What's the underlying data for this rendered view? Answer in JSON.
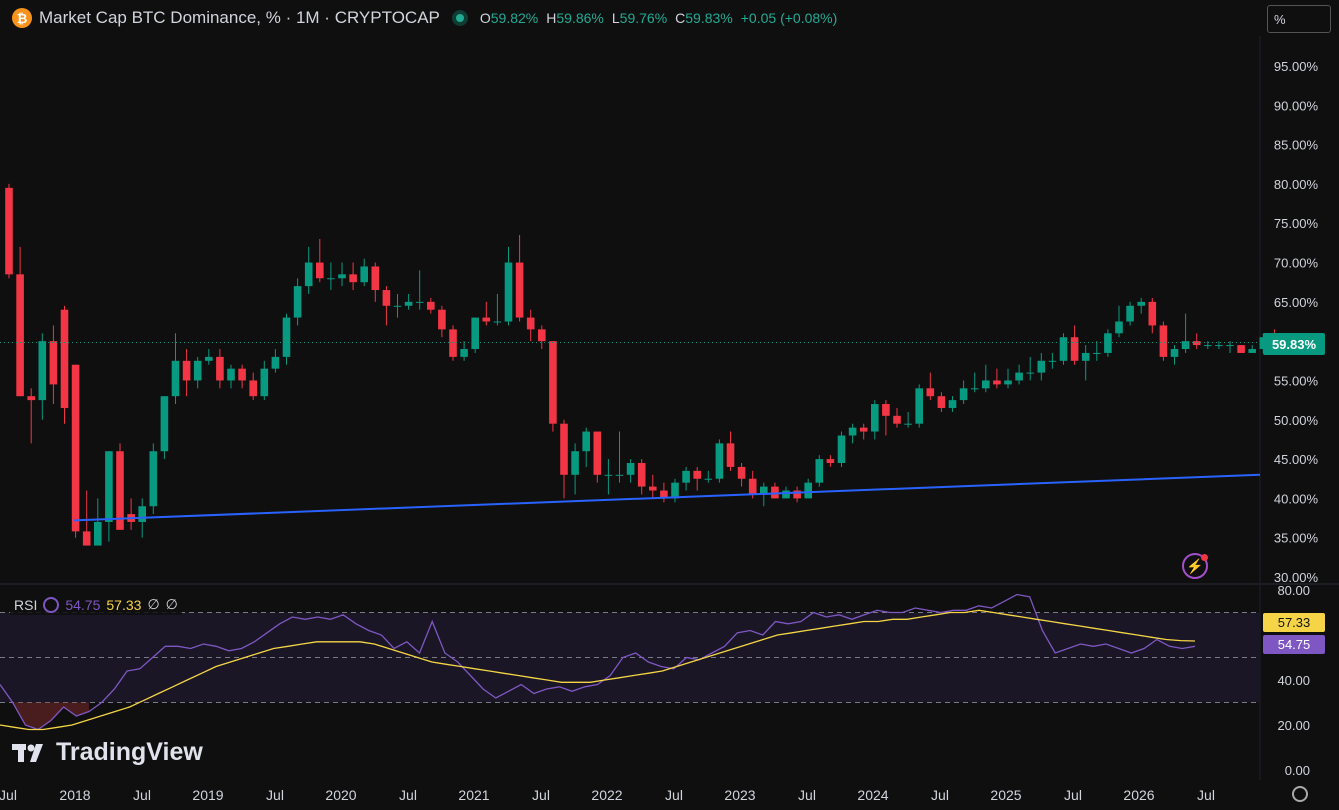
{
  "header": {
    "symbol_icon": "₿",
    "title": "Market Cap BTC Dominance, % · 1M · CRYPTOCAP",
    "ohlc": [
      {
        "k": "O",
        "v": "59.82%"
      },
      {
        "k": "H",
        "v": "59.86%"
      },
      {
        "k": "L",
        "v": "59.76%"
      },
      {
        "k": "C",
        "v": "59.83%"
      },
      {
        "k": "",
        "v": "+0.05 (+0.08%)"
      }
    ]
  },
  "scale_mode": "%",
  "last_price_label": "59.83%",
  "rsi": {
    "label": "RSI",
    "value": "54.75",
    "ma_value": "57.33",
    "extra1": "∅",
    "extra2": "∅"
  },
  "logo_text": "TradingView",
  "colors": {
    "up": "#089981",
    "down": "#f23645",
    "trendline": "#2962ff",
    "rsi": "#7e57c2",
    "rsi_ma": "#f5d547"
  },
  "chart_data": [
    {
      "type": "candlestick",
      "title": "Market Cap BTC Dominance, % · 1M · CRYPTOCAP",
      "y_unit": "%",
      "ylim": [
        30,
        97
      ],
      "y_ticks": [
        "95.00%",
        "90.00%",
        "85.00%",
        "80.00%",
        "75.00%",
        "70.00%",
        "65.00%",
        "60.00%",
        "55.00%",
        "50.00%",
        "45.00%",
        "40.00%",
        "35.00%",
        "30.00%"
      ],
      "x_ticks": [
        "Jul",
        "2018",
        "Jul",
        "2019",
        "Jul",
        "2020",
        "Jul",
        "2021",
        "Jul",
        "2022",
        "Jul",
        "2023",
        "Jul",
        "2024",
        "Jul",
        "2025",
        "Jul",
        "2026",
        "Jul"
      ],
      "x_start": "2017-06",
      "candles": [
        [
          79.5,
          68.5,
          80.0,
          68.0
        ],
        [
          68.5,
          53.0,
          72.0,
          53.0
        ],
        [
          53.0,
          52.5,
          54.0,
          47.0
        ],
        [
          52.5,
          60.0,
          61.0,
          50.0
        ],
        [
          60.0,
          54.5,
          62.0,
          52.0
        ],
        [
          64.0,
          51.5,
          64.5,
          49.5
        ],
        [
          57.0,
          35.8,
          57.0,
          35.0
        ],
        [
          35.8,
          34.0,
          41.0,
          34.0
        ],
        [
          34.0,
          37.0,
          40.0,
          34.0
        ],
        [
          37.0,
          46.0,
          46.0,
          34.5
        ],
        [
          46.0,
          36.0,
          47.0,
          36.0
        ],
        [
          38.0,
          37.0,
          40.0,
          36.0
        ],
        [
          37.0,
          39.0,
          40.0,
          35.0
        ],
        [
          39.0,
          46.0,
          47.0,
          38.0
        ],
        [
          46.0,
          53.0,
          53.0,
          45.0
        ],
        [
          53.0,
          57.5,
          61.0,
          52.0
        ],
        [
          57.5,
          55.0,
          59.0,
          53.0
        ],
        [
          55.0,
          57.5,
          58.0,
          54.0
        ],
        [
          57.5,
          58.0,
          59.0,
          57.0
        ],
        [
          58.0,
          55.0,
          59.0,
          54.0
        ],
        [
          55.0,
          56.5,
          57.0,
          54.0
        ],
        [
          56.5,
          55.0,
          57.0,
          54.0
        ],
        [
          55.0,
          53.0,
          56.0,
          52.5
        ],
        [
          53.0,
          56.5,
          57.5,
          52.5
        ],
        [
          56.5,
          58.0,
          59.0,
          56.0
        ],
        [
          58.0,
          63.0,
          63.5,
          57.0
        ],
        [
          63.0,
          67.0,
          68.0,
          62.0
        ],
        [
          67.0,
          70.0,
          72.0,
          66.0
        ],
        [
          70.0,
          68.0,
          73.0,
          67.5
        ],
        [
          68.0,
          68.0,
          70.0,
          66.5
        ],
        [
          68.0,
          68.5,
          70.0,
          67.0
        ],
        [
          68.5,
          67.5,
          70.0,
          66.5
        ],
        [
          67.5,
          69.5,
          70.5,
          67.0
        ],
        [
          69.5,
          66.5,
          70.0,
          65.0
        ],
        [
          66.5,
          64.5,
          67.0,
          62.0
        ],
        [
          64.5,
          64.5,
          66.0,
          63.0
        ],
        [
          64.5,
          65.0,
          66.0,
          64.0
        ],
        [
          65.0,
          65.0,
          69.0,
          64.0
        ],
        [
          65.0,
          64.0,
          65.5,
          63.5
        ],
        [
          64.0,
          61.5,
          64.5,
          60.5
        ],
        [
          61.5,
          58.0,
          62.0,
          57.5
        ],
        [
          58.0,
          59.0,
          60.0,
          57.5
        ],
        [
          59.0,
          63.0,
          63.0,
          58.5
        ],
        [
          63.0,
          62.5,
          65.0,
          62.0
        ],
        [
          62.5,
          62.5,
          66.0,
          62.0
        ],
        [
          62.5,
          70.0,
          72.0,
          62.0
        ],
        [
          70.0,
          63.0,
          73.5,
          62.5
        ],
        [
          63.0,
          61.5,
          64.0,
          60.0
        ],
        [
          61.5,
          60.0,
          62.0,
          59.0
        ],
        [
          60.0,
          49.5,
          60.0,
          48.5
        ],
        [
          49.5,
          43.0,
          50.0,
          40.0
        ],
        [
          43.0,
          46.0,
          47.0,
          40.5
        ],
        [
          46.0,
          48.5,
          49.0,
          44.0
        ],
        [
          48.5,
          43.0,
          48.5,
          42.0
        ],
        [
          43.0,
          43.0,
          45.0,
          40.5
        ],
        [
          43.0,
          43.0,
          48.5,
          42.0
        ],
        [
          43.0,
          44.5,
          45.0,
          42.0
        ],
        [
          44.5,
          41.5,
          45.0,
          40.5
        ],
        [
          41.5,
          41.0,
          43.0,
          40.0
        ],
        [
          41.0,
          40.0,
          42.0,
          39.5
        ],
        [
          40.0,
          42.0,
          42.5,
          39.5
        ],
        [
          42.0,
          43.5,
          44.0,
          41.0
        ],
        [
          43.5,
          42.5,
          44.0,
          41.0
        ],
        [
          42.5,
          42.5,
          43.5,
          42.0
        ],
        [
          42.5,
          47.0,
          47.5,
          42.0
        ],
        [
          47.0,
          44.0,
          48.5,
          43.5
        ],
        [
          44.0,
          42.5,
          44.5,
          41.5
        ],
        [
          42.5,
          40.5,
          43.5,
          40.0
        ],
        [
          40.5,
          41.5,
          42.0,
          39.0
        ],
        [
          41.5,
          40.0,
          42.0,
          40.0
        ],
        [
          40.0,
          41.0,
          41.5,
          40.0
        ],
        [
          41.0,
          40.0,
          41.5,
          39.5
        ],
        [
          40.0,
          42.0,
          42.5,
          40.0
        ],
        [
          42.0,
          45.0,
          45.5,
          41.5
        ],
        [
          45.0,
          44.5,
          45.5,
          44.0
        ],
        [
          44.5,
          48.0,
          48.5,
          44.0
        ],
        [
          48.0,
          49.0,
          49.5,
          47.0
        ],
        [
          49.0,
          48.5,
          49.5,
          47.5
        ],
        [
          48.5,
          52.0,
          52.5,
          47.5
        ],
        [
          52.0,
          50.5,
          52.5,
          48.0
        ],
        [
          50.5,
          49.5,
          51.5,
          49.0
        ],
        [
          49.5,
          49.5,
          51.0,
          49.0
        ],
        [
          49.5,
          54.0,
          54.5,
          49.0
        ],
        [
          54.0,
          53.0,
          56.0,
          52.5
        ],
        [
          53.0,
          51.5,
          53.5,
          51.0
        ],
        [
          51.5,
          52.5,
          53.0,
          51.0
        ],
        [
          52.5,
          54.0,
          55.0,
          52.0
        ],
        [
          54.0,
          54.0,
          56.0,
          53.5
        ],
        [
          54.0,
          55.0,
          57.0,
          53.5
        ],
        [
          55.0,
          54.5,
          56.5,
          54.0
        ],
        [
          54.5,
          55.0,
          56.5,
          54.0
        ],
        [
          55.0,
          56.0,
          57.0,
          54.5
        ],
        [
          56.0,
          56.0,
          58.0,
          55.0
        ],
        [
          56.0,
          57.5,
          58.5,
          55.0
        ],
        [
          57.5,
          57.5,
          58.5,
          56.5
        ],
        [
          57.5,
          60.5,
          61.0,
          57.0
        ],
        [
          60.5,
          57.5,
          62.0,
          57.0
        ],
        [
          57.5,
          58.5,
          59.5,
          55.0
        ],
        [
          58.5,
          58.5,
          60.0,
          57.5
        ],
        [
          58.5,
          61.0,
          61.5,
          58.0
        ],
        [
          61.0,
          62.5,
          64.5,
          60.5
        ],
        [
          62.5,
          64.5,
          65.0,
          62.0
        ],
        [
          64.5,
          65.0,
          65.5,
          63.5
        ],
        [
          65.0,
          62.0,
          65.5,
          61.0
        ],
        [
          62.0,
          58.0,
          62.5,
          57.5
        ],
        [
          58.0,
          59.0,
          59.5,
          57.0
        ],
        [
          59.0,
          60.0,
          63.5,
          58.5
        ],
        [
          60.0,
          59.5,
          61.0,
          59.0
        ],
        [
          59.5,
          59.5,
          60.0,
          59.0
        ],
        [
          59.5,
          59.5,
          60.0,
          59.0
        ],
        [
          59.5,
          59.5,
          60.0,
          58.5
        ],
        [
          59.5,
          58.5,
          59.5,
          58.5
        ],
        [
          58.5,
          59.0,
          59.5,
          58.5
        ],
        [
          59.0,
          60.5,
          61.0,
          58.5
        ],
        [
          60.5,
          59.8,
          61.5,
          59.5
        ],
        [
          59.82,
          59.83,
          59.86,
          59.76
        ]
      ]
    },
    {
      "type": "line",
      "title": "RSI",
      "ylim": [
        0,
        80
      ],
      "y_ticks": [
        "80.00",
        "40.00",
        "20.00",
        "0.00"
      ],
      "bands": [
        70,
        50,
        30
      ],
      "series": [
        {
          "name": "RSI",
          "values": [
            38,
            30,
            20,
            18,
            22,
            28,
            24,
            26,
            30,
            36,
            44,
            45,
            50,
            55,
            55,
            54,
            56,
            55,
            53,
            54,
            57,
            61,
            65,
            68,
            67,
            68,
            67,
            69,
            65,
            62,
            60,
            54,
            57,
            52,
            66,
            52,
            48,
            42,
            36,
            32,
            35,
            38,
            34,
            36,
            37,
            35,
            37,
            38,
            42,
            50,
            52,
            48,
            46,
            45,
            50,
            49,
            52,
            55,
            61,
            62,
            60,
            66,
            65,
            66,
            70,
            68,
            69,
            67,
            69,
            71,
            70,
            70,
            72,
            71,
            70,
            71,
            71,
            73,
            72,
            75,
            78,
            77,
            62,
            52,
            54,
            56,
            55,
            56,
            54,
            52,
            54,
            58,
            55,
            54,
            55
          ]
        },
        {
          "name": "MA",
          "values": [
            20,
            19,
            18,
            18,
            19,
            20,
            22,
            24,
            26,
            28,
            31,
            34,
            37,
            40,
            43,
            46,
            48,
            50,
            52,
            54,
            55,
            56,
            57,
            57,
            57,
            57,
            56,
            54,
            52,
            50,
            48,
            47,
            46,
            45,
            44,
            43,
            42,
            41,
            40,
            39,
            39,
            39,
            40,
            41,
            42,
            43,
            44,
            46,
            48,
            50,
            52,
            54,
            56,
            58,
            60,
            61,
            62,
            63,
            64,
            65,
            66,
            66,
            67,
            67,
            68,
            69,
            70,
            70,
            71,
            70,
            69,
            68,
            67,
            66,
            65,
            64,
            63,
            62,
            61,
            60,
            59,
            58,
            57.5,
            57.33
          ]
        }
      ]
    }
  ]
}
